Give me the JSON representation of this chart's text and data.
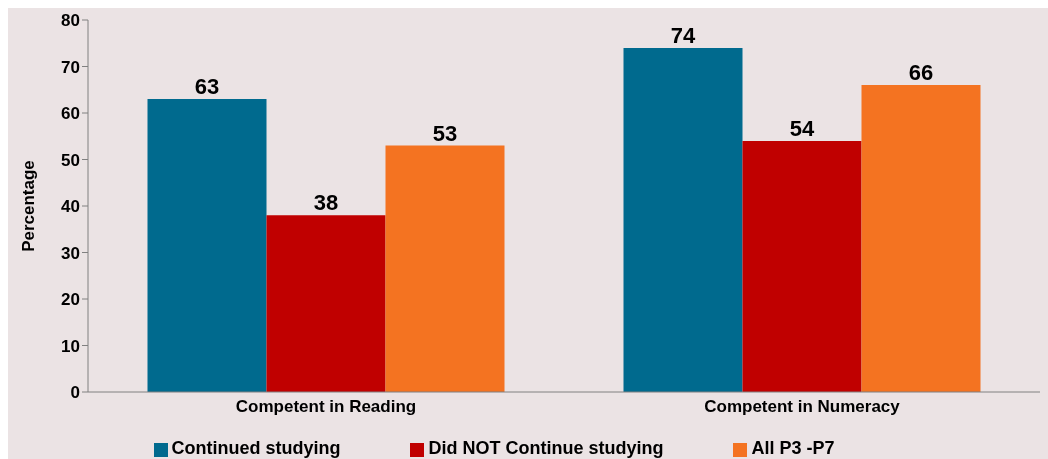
{
  "chart_data": {
    "type": "bar",
    "ylabel": "Percentage",
    "categories": [
      "Competent in Reading",
      "Competent in Numeracy"
    ],
    "series": [
      {
        "name": "Continued studying",
        "color": "#006a8e",
        "values": [
          63,
          74
        ]
      },
      {
        "name": "Did NOT Continue studying",
        "color": "#c00000",
        "values": [
          38,
          54
        ]
      },
      {
        "name": "All P3 -P7",
        "color": "#f47321",
        "values": [
          53,
          66
        ]
      }
    ],
    "ylim": [
      0,
      80
    ],
    "yticks": [
      0,
      10,
      20,
      30,
      40,
      50,
      60,
      70,
      80
    ],
    "data_labels": true,
    "legend": "bottom"
  }
}
